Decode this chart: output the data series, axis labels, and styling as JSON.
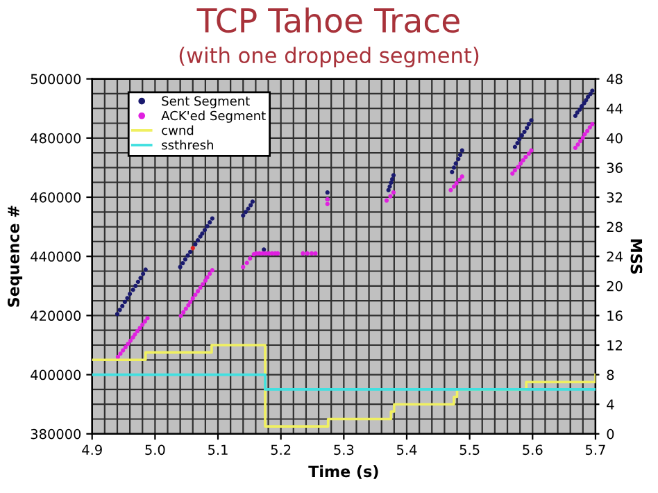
{
  "chart_data": {
    "type": "scatter",
    "title": "TCP Tahoe Trace",
    "subtitle": "(with one dropped segment)",
    "xlabel": "Time (s)",
    "ylabel": "Sequence #",
    "y2label": "MSS",
    "series": [
      {
        "name": "Sent Segment",
        "marker": "circle",
        "color": "#1a1a6e",
        "x": [
          4.94,
          4.944,
          4.948,
          4.952,
          4.956,
          4.96,
          4.965,
          4.969,
          4.973,
          4.977,
          4.981,
          4.985,
          5.04,
          5.044,
          5.048,
          5.052,
          5.056,
          5.064,
          5.068,
          5.072,
          5.075,
          5.079,
          5.083,
          5.087,
          5.091,
          5.14,
          5.144,
          5.148,
          5.152,
          5.155,
          5.173,
          5.274,
          5.274,
          5.371,
          5.373,
          5.375,
          5.377,
          5.379,
          5.472,
          5.475,
          5.478,
          5.482,
          5.485,
          5.488,
          5.572,
          5.576,
          5.579,
          5.583,
          5.587,
          5.591,
          5.594,
          5.598,
          5.668,
          5.671,
          5.675,
          5.678,
          5.682,
          5.685,
          5.688,
          5.692,
          5.695
        ],
        "values": [
          420500,
          421900,
          423200,
          424600,
          425900,
          427300,
          428700,
          430000,
          431400,
          432700,
          434100,
          435500,
          436400,
          437700,
          439000,
          440300,
          441500,
          444100,
          445400,
          446700,
          447700,
          448900,
          450200,
          451500,
          452800,
          453800,
          455000,
          456100,
          457300,
          458500,
          442300,
          459300,
          461600,
          462400,
          463600,
          464900,
          466100,
          467400,
          468500,
          470000,
          471400,
          472900,
          474300,
          475800,
          477000,
          478300,
          479600,
          480900,
          482100,
          483400,
          484700,
          486000,
          487500,
          488600,
          489600,
          490700,
          491800,
          492800,
          493900,
          494900,
          496000
        ]
      },
      {
        "marker": "circle",
        "color": "#e02020",
        "x": [
          5.06
        ],
        "values": [
          442800
        ]
      },
      {
        "name": "ACK'ed Segment",
        "marker": "circle",
        "color": "#e020e0",
        "x": [
          4.941,
          4.945,
          4.949,
          4.953,
          4.957,
          4.961,
          4.965,
          4.968,
          4.972,
          4.976,
          4.98,
          4.984,
          4.988,
          5.041,
          5.045,
          5.049,
          5.053,
          5.056,
          5.06,
          5.064,
          5.068,
          5.072,
          5.076,
          5.08,
          5.083,
          5.087,
          5.091,
          5.14,
          5.146,
          5.151,
          5.157,
          5.161,
          5.166,
          5.171,
          5.176,
          5.181,
          5.186,
          5.191,
          5.195,
          5.235,
          5.242,
          5.249,
          5.255,
          5.274,
          5.274,
          5.368,
          5.374,
          5.379,
          5.47,
          5.475,
          5.479,
          5.484,
          5.488,
          5.568,
          5.572,
          5.577,
          5.581,
          5.585,
          5.589,
          5.594,
          5.598,
          5.668,
          5.672,
          5.676,
          5.68,
          5.683,
          5.687,
          5.691,
          5.695
        ],
        "values": [
          406000,
          407100,
          408200,
          409300,
          410400,
          411500,
          412600,
          413600,
          414700,
          415800,
          416900,
          418000,
          419100,
          419900,
          421100,
          422300,
          423500,
          424600,
          425800,
          427000,
          428200,
          429400,
          430600,
          431800,
          432900,
          434100,
          435300,
          436400,
          437800,
          439300,
          440700,
          441000,
          441000,
          441000,
          441000,
          441000,
          441000,
          441000,
          441000,
          441000,
          441000,
          441000,
          441000,
          457700,
          459300,
          458900,
          460300,
          461600,
          462400,
          463600,
          464700,
          465900,
          467000,
          468000,
          469100,
          470200,
          471400,
          472500,
          473600,
          474700,
          475800,
          476700,
          477800,
          479000,
          480100,
          481300,
          482400,
          483600,
          484700
        ]
      },
      {
        "name": "cwnd",
        "type": "step",
        "axis": "y2",
        "color": "#f0f060",
        "x": [
          4.9,
          4.985,
          5.09,
          5.175,
          5.275,
          5.375,
          5.38,
          5.475,
          5.48,
          5.59,
          5.7
        ],
        "values": [
          10,
          11,
          12,
          1,
          2,
          3,
          4,
          5,
          6,
          7,
          8
        ]
      },
      {
        "name": "ssthresh",
        "type": "step",
        "axis": "y2",
        "color": "#40e0e0",
        "x": [
          4.9,
          5.175,
          5.7
        ],
        "values": [
          8,
          6,
          6
        ]
      }
    ],
    "xlim": [
      4.9,
      5.7
    ],
    "xticks": [
      {
        "value": 4.9,
        "label": "4.9"
      },
      {
        "value": 4.92,
        "label": null
      },
      {
        "value": 4.94,
        "label": null
      },
      {
        "value": 4.96,
        "label": null
      },
      {
        "value": 4.98,
        "label": null
      },
      {
        "value": 5.0,
        "label": "5.0"
      },
      {
        "value": 5.02,
        "label": null
      },
      {
        "value": 5.04,
        "label": null
      },
      {
        "value": 5.06,
        "label": null
      },
      {
        "value": 5.08,
        "label": null
      },
      {
        "value": 5.1,
        "label": "5.1"
      },
      {
        "value": 5.12,
        "label": null
      },
      {
        "value": 5.14,
        "label": null
      },
      {
        "value": 5.16,
        "label": null
      },
      {
        "value": 5.18,
        "label": null
      },
      {
        "value": 5.2,
        "label": "5.2"
      },
      {
        "value": 5.22,
        "label": null
      },
      {
        "value": 5.24,
        "label": null
      },
      {
        "value": 5.26,
        "label": null
      },
      {
        "value": 5.28,
        "label": null
      },
      {
        "value": 5.3,
        "label": "5.3"
      },
      {
        "value": 5.32,
        "label": null
      },
      {
        "value": 5.34,
        "label": null
      },
      {
        "value": 5.36,
        "label": null
      },
      {
        "value": 5.38,
        "label": null
      },
      {
        "value": 5.4,
        "label": "5.4"
      },
      {
        "value": 5.42,
        "label": null
      },
      {
        "value": 5.44,
        "label": null
      },
      {
        "value": 5.46,
        "label": null
      },
      {
        "value": 5.48,
        "label": null
      },
      {
        "value": 5.5,
        "label": "5.5"
      },
      {
        "value": 5.52,
        "label": null
      },
      {
        "value": 5.54,
        "label": null
      },
      {
        "value": 5.56,
        "label": null
      },
      {
        "value": 5.58,
        "label": null
      },
      {
        "value": 5.6,
        "label": "5.6"
      },
      {
        "value": 5.62,
        "label": null
      },
      {
        "value": 5.64,
        "label": null
      },
      {
        "value": 5.66,
        "label": null
      },
      {
        "value": 5.68,
        "label": null
      },
      {
        "value": 5.7,
        "label": "5.7"
      }
    ],
    "ylim": [
      380000,
      500000
    ],
    "yticks": [
      380000,
      {
        "value": 385000,
        "label": null
      },
      {
        "value": 390000,
        "label": null
      },
      {
        "value": 395000,
        "label": null
      },
      400000,
      {
        "value": 405000,
        "label": null
      },
      {
        "value": 410000,
        "label": null
      },
      {
        "value": 415000,
        "label": null
      },
      420000,
      {
        "value": 425000,
        "label": null
      },
      {
        "value": 430000,
        "label": null
      },
      {
        "value": 435000,
        "label": null
      },
      440000,
      {
        "value": 445000,
        "label": null
      },
      {
        "value": 450000,
        "label": null
      },
      {
        "value": 455000,
        "label": null
      },
      460000,
      {
        "value": 465000,
        "label": null
      },
      {
        "value": 470000,
        "label": null
      },
      {
        "value": 475000,
        "label": null
      },
      480000,
      {
        "value": 485000,
        "label": null
      },
      {
        "value": 490000,
        "label": null
      },
      {
        "value": 495000,
        "label": null
      },
      500000
    ],
    "y2lim": [
      0,
      48
    ],
    "y2ticks": [
      0,
      4,
      8,
      12,
      16,
      20,
      24,
      28,
      32,
      36,
      40,
      44,
      48
    ],
    "grid": true,
    "legend": "top left"
  }
}
